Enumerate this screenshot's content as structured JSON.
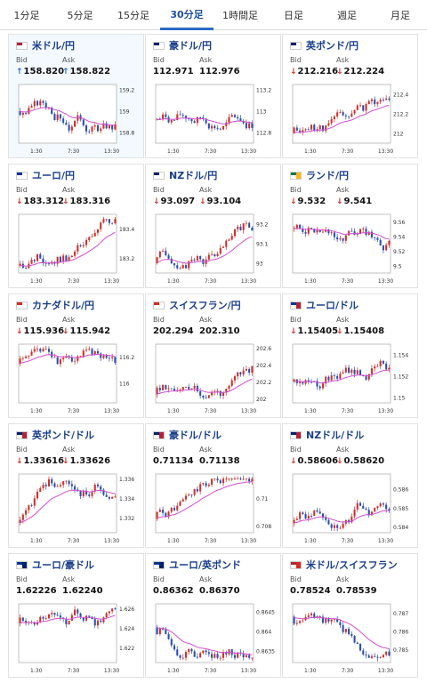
{
  "tabs": [
    {
      "label": "1分足",
      "active": false
    },
    {
      "label": "5分足",
      "active": false
    },
    {
      "label": "15分足",
      "active": false
    },
    {
      "label": "30分足",
      "active": true
    },
    {
      "label": "1時間足",
      "active": false
    },
    {
      "label": "日足",
      "active": false
    },
    {
      "label": "週足",
      "active": false
    },
    {
      "label": "月足",
      "active": false
    }
  ],
  "price_labels": {
    "bid": "Bid",
    "ask": "Ask"
  },
  "cards": [
    {
      "pair": "米ドル/円",
      "flag": [
        "#b22234",
        "#ffffff"
      ],
      "bid": "158.820",
      "ask": "158.822",
      "dir": "up",
      "highlight": true,
      "chart_data": {
        "type": "candlestick",
        "x_ticks": [
          "1:30",
          "7:30",
          "13:30"
        ],
        "y_ticks": [
          "158.8",
          "159",
          "159.2"
        ],
        "ylim": [
          158.7,
          159.25
        ],
        "start": 159.0,
        "ma_trend": 0.0,
        "seed": 3
      }
    },
    {
      "pair": "豪ドル/円",
      "flag": [
        "#012169",
        "#ffffff"
      ],
      "bid": "112.971",
      "ask": "112.976",
      "dir": "none",
      "highlight": false,
      "chart_data": {
        "type": "candlestick",
        "x_ticks": [
          "1:30",
          "7:30",
          "13:30"
        ],
        "y_ticks": [
          "112.8",
          "113",
          "113.2"
        ],
        "ylim": [
          112.7,
          113.25
        ],
        "start": 112.92,
        "ma_trend": 0.04,
        "seed": 7
      }
    },
    {
      "pair": "英ポンド/円",
      "flag": [
        "#012169",
        "#ffffff"
      ],
      "bid": "212.216",
      "ask": "212.224",
      "dir": "down",
      "highlight": false,
      "chart_data": {
        "type": "candlestick",
        "x_ticks": [
          "1:30",
          "7:30",
          "13:30"
        ],
        "y_ticks": [
          "212",
          "212.2",
          "212.4"
        ],
        "ylim": [
          211.9,
          212.5
        ],
        "start": 212.0,
        "ma_trend": 0.2,
        "seed": 11
      }
    },
    {
      "pair": "ユーロ/円",
      "flag": [
        "#003399",
        "#ffffff"
      ],
      "bid": "183.312",
      "ask": "183.316",
      "dir": "down",
      "highlight": false,
      "chart_data": {
        "type": "candlestick",
        "x_ticks": [
          "1:30",
          "7:30",
          "13:30"
        ],
        "y_ticks": [
          "183.2",
          "183.4"
        ],
        "ylim": [
          183.1,
          183.5
        ],
        "start": 183.15,
        "ma_trend": 0.2,
        "seed": 13
      }
    },
    {
      "pair": "NZドル/円",
      "flag": [
        "#012169",
        "#ffffff"
      ],
      "bid": "93.097",
      "ask": "93.104",
      "dir": "down",
      "highlight": false,
      "chart_data": {
        "type": "candlestick",
        "x_ticks": [
          "1:30",
          "7:30",
          "13:30"
        ],
        "y_ticks": [
          "93",
          "93.1",
          "93.2"
        ],
        "ylim": [
          92.95,
          93.25
        ],
        "start": 93.0,
        "ma_trend": 0.1,
        "seed": 17
      }
    },
    {
      "pair": "ランド/円",
      "flag": [
        "#007a4d",
        "#ffb612"
      ],
      "bid": "9.532",
      "ask": "9.541",
      "dir": "down",
      "highlight": false,
      "chart_data": {
        "type": "candlestick",
        "x_ticks": [
          "1:30",
          "7:30",
          "13:30"
        ],
        "y_ticks": [
          "9.5",
          "9.52",
          "9.54",
          "9.56"
        ],
        "ylim": [
          9.49,
          9.57
        ],
        "start": 9.55,
        "ma_trend": -0.02,
        "seed": 19
      }
    },
    {
      "pair": "カナダドル/円",
      "flag": [
        "#d52b1e",
        "#ffffff"
      ],
      "bid": "115.936",
      "ask": "115.942",
      "dir": "down",
      "highlight": false,
      "chart_data": {
        "type": "candlestick",
        "x_ticks": [
          "1:30",
          "7:30",
          "13:30"
        ],
        "y_ticks": [
          "116",
          "116.2"
        ],
        "ylim": [
          115.85,
          116.3
        ],
        "start": 116.15,
        "ma_trend": -0.15,
        "seed": 23
      }
    },
    {
      "pair": "スイスフラン/円",
      "flag": [
        "#d52b1e",
        "#ffffff"
      ],
      "bid": "202.294",
      "ask": "202.310",
      "dir": "none",
      "highlight": false,
      "chart_data": {
        "type": "candlestick",
        "x_ticks": [
          "1:30",
          "7:30",
          "13:30"
        ],
        "y_ticks": [
          "202",
          "202.2",
          "202.4",
          "202.6"
        ],
        "ylim": [
          201.95,
          202.65
        ],
        "start": 202.05,
        "ma_trend": 0.3,
        "seed": 29
      }
    },
    {
      "pair": "ユーロ/ドル",
      "flag": [
        "#003399",
        "#b22234"
      ],
      "bid": "1.15405",
      "ask": "1.15408",
      "dir": "down",
      "highlight": false,
      "chart_data": {
        "type": "candlestick",
        "x_ticks": [
          "1:30",
          "7:30",
          "13:30"
        ],
        "y_ticks": [
          "1.15",
          "1.152",
          "1.154"
        ],
        "ylim": [
          1.1495,
          1.155
        ],
        "start": 1.1515,
        "ma_trend": 0.002,
        "seed": 31
      }
    },
    {
      "pair": "英ポンド/ドル",
      "flag": [
        "#012169",
        "#b22234"
      ],
      "bid": "1.33616",
      "ask": "1.33626",
      "dir": "down",
      "highlight": false,
      "chart_data": {
        "type": "candlestick",
        "x_ticks": [
          "1:30",
          "7:30",
          "13:30"
        ],
        "y_ticks": [
          "1.332",
          "1.334",
          "1.336"
        ],
        "ylim": [
          1.3305,
          1.3365
        ],
        "start": 1.3315,
        "ma_trend": 0.004,
        "seed": 37
      }
    },
    {
      "pair": "豪ドル/ドル",
      "flag": [
        "#012169",
        "#b22234"
      ],
      "bid": "0.71134",
      "ask": "0.71138",
      "dir": "none",
      "highlight": false,
      "chart_data": {
        "type": "candlestick",
        "x_ticks": [
          "1:30",
          "7:30",
          "13:30"
        ],
        "y_ticks": [
          "0.708",
          "0.71"
        ],
        "ylim": [
          0.7075,
          0.7118
        ],
        "start": 0.7085,
        "ma_trend": 0.002,
        "seed": 41
      }
    },
    {
      "pair": "NZドル/ドル",
      "flag": [
        "#012169",
        "#b22234"
      ],
      "bid": "0.58606",
      "ask": "0.58620",
      "dir": "down",
      "highlight": false,
      "chart_data": {
        "type": "candlestick",
        "x_ticks": [
          "1:30",
          "7:30",
          "13:30"
        ],
        "y_ticks": [
          "0.584",
          "0.585",
          "0.586"
        ],
        "ylim": [
          0.5837,
          0.5868
        ],
        "start": 0.5842,
        "ma_trend": 0.002,
        "seed": 43
      }
    },
    {
      "pair": "ユーロ/豪ドル",
      "flag": [
        "#003399",
        "#012169"
      ],
      "bid": "1.62226",
      "ask": "1.62240",
      "dir": "none",
      "highlight": false,
      "chart_data": {
        "type": "candlestick",
        "x_ticks": [
          "1:30",
          "7:30",
          "13:30"
        ],
        "y_ticks": [
          "1.622",
          "1.624",
          "1.626"
        ],
        "ylim": [
          1.6205,
          1.6265
        ],
        "start": 1.6245,
        "ma_trend": -0.002,
        "seed": 47
      }
    },
    {
      "pair": "ユーロ/英ポンド",
      "flag": [
        "#003399",
        "#012169"
      ],
      "bid": "0.86362",
      "ask": "0.86370",
      "dir": "none",
      "highlight": false,
      "chart_data": {
        "type": "candlestick",
        "x_ticks": [
          "1:30",
          "7:30",
          "13:30"
        ],
        "y_ticks": [
          "0.8635",
          "0.864",
          "0.8645"
        ],
        "ylim": [
          0.8632,
          0.8647
        ],
        "start": 0.8641,
        "ma_trend": -0.0005,
        "seed": 53
      }
    },
    {
      "pair": "米ドル/スイスフラン",
      "flag": [
        "#b22234",
        "#d52b1e"
      ],
      "bid": "0.78524",
      "ask": "0.78539",
      "dir": "none",
      "highlight": false,
      "chart_data": {
        "type": "candlestick",
        "x_ticks": [
          "1:30",
          "7:30",
          "13:30"
        ],
        "y_ticks": [
          "0.785",
          "0.786",
          "0.787"
        ],
        "ylim": [
          0.7843,
          0.7875
        ],
        "start": 0.7868,
        "ma_trend": -0.0018,
        "seed": 59
      }
    }
  ]
}
